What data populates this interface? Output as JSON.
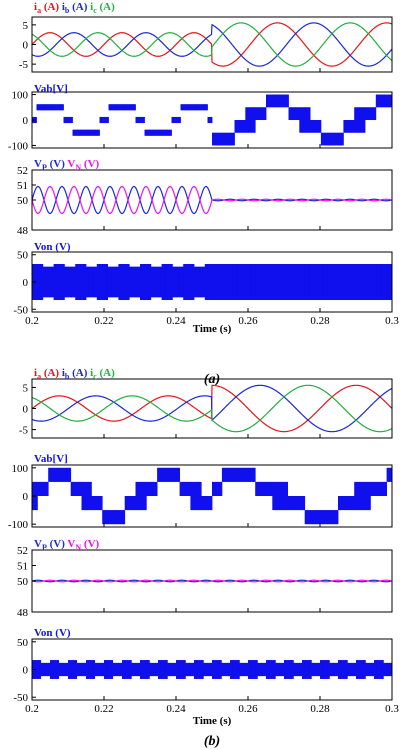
{
  "colors": {
    "ia": "#e8141b",
    "ib": "#1c28d8",
    "ic": "#22b040",
    "vab": "#1010ee",
    "vp": "#1c28d8",
    "vn": "#ee11ee",
    "von": "#1010ee"
  },
  "chart_data": [
    {
      "id": "a",
      "caption": "(a)",
      "xlabel": "Time (s)",
      "xlim": [
        0.2,
        0.3
      ],
      "xticks": [
        0.2,
        0.22,
        0.24,
        0.26,
        0.28,
        0.3
      ],
      "xtick_labels": [
        "0.2",
        "0.22",
        "0.24",
        "0.26",
        "0.28",
        "0.3"
      ],
      "transition_time": 0.25,
      "panels": [
        {
          "type": "line",
          "title_parts": [
            {
              "text": "i",
              "sub": "a",
              "unit": " (A)",
              "color": "ia"
            },
            {
              "text": " i",
              "sub": "b",
              "unit": " (A)",
              "color": "ib"
            },
            {
              "text": " i",
              "sub": "c",
              "unit": " (A)",
              "color": "ic"
            }
          ],
          "ylim": [
            -7,
            7
          ],
          "yticks": [
            -5,
            0,
            5
          ],
          "ytick_labels": [
            "-5",
            "0",
            "5"
          ],
          "frequency_hz": 50,
          "amplitude_before": 3,
          "amplitude_after": 5.5,
          "series": [
            {
              "name": "ia",
              "phase_deg": 0
            },
            {
              "name": "ib",
              "phase_deg": -120
            },
            {
              "name": "ic",
              "phase_deg": 120
            }
          ]
        },
        {
          "type": "area",
          "title_parts": [
            {
              "text": "Vab[V]",
              "color": "vab"
            }
          ],
          "ylim": [
            -110,
            110
          ],
          "yticks": [
            -100,
            0,
            100
          ],
          "ytick_labels": [
            "-100",
            "0",
            "100"
          ],
          "levels_before": [
            50,
            0,
            -50
          ],
          "levels_after": [
            100,
            50,
            0,
            -50,
            -100
          ]
        },
        {
          "type": "line",
          "title_parts": [
            {
              "text": "V",
              "sub": "P",
              "unit": " (V)",
              "color": "vp"
            },
            {
              "text": " V",
              "sub": "N",
              "unit": " (V)",
              "color": "vn"
            }
          ],
          "ylim": [
            48,
            52
          ],
          "yticks": [
            48,
            50,
            51,
            52
          ],
          "ytick_labels": [
            "48",
            "50",
            "51",
            "52"
          ],
          "center": 50,
          "ripple_before": 0.9,
          "ripple_after": 0.05
        },
        {
          "type": "area",
          "title_parts": [
            {
              "text": "Von (V)",
              "color": "von"
            }
          ],
          "ylim": [
            -55,
            55
          ],
          "yticks": [
            -50,
            0,
            50
          ],
          "ytick_labels": [
            "-50",
            "0",
            "50"
          ],
          "amplitude": 33
        }
      ]
    },
    {
      "id": "b",
      "caption": "(b)",
      "xlabel": "Time (s)",
      "xlim": [
        0.2,
        0.3
      ],
      "xticks": [
        0.2,
        0.22,
        0.24,
        0.26,
        0.28,
        0.3
      ],
      "xtick_labels": [
        "0.2",
        "0.22",
        "0.24",
        "0.26",
        "0.28",
        "0.3"
      ],
      "transition_time": 0.25,
      "panels": [
        {
          "type": "line",
          "title_parts": [
            {
              "text": "i",
              "sub": "a",
              "unit": " (A)",
              "color": "ia"
            },
            {
              "text": " i",
              "sub": "b",
              "unit": " (A)",
              "color": "ib"
            },
            {
              "text": " i",
              "sub": "c",
              "unit": " (A)",
              "color": "ic"
            }
          ],
          "ylim": [
            -7,
            7
          ],
          "yticks": [
            -5,
            0,
            5
          ],
          "ytick_labels": [
            "-5",
            "0",
            "5"
          ],
          "frequency_hz": 33,
          "amplitude_before": 3,
          "amplitude_after": 5.5,
          "series": [
            {
              "name": "ia",
              "phase_deg": 0
            },
            {
              "name": "ib",
              "phase_deg": -120
            },
            {
              "name": "ic",
              "phase_deg": 120
            }
          ]
        },
        {
          "type": "area",
          "title_parts": [
            {
              "text": "Vab[V]",
              "color": "vab"
            }
          ],
          "ylim": [
            -110,
            110
          ],
          "yticks": [
            -100,
            0,
            100
          ],
          "ytick_labels": [
            "-100",
            "0",
            "100"
          ],
          "levels": [
            100,
            50,
            0,
            -50,
            -100
          ]
        },
        {
          "type": "line",
          "title_parts": [
            {
              "text": "V",
              "sub": "P",
              "unit": " (V)",
              "color": "vp"
            },
            {
              "text": " V",
              "sub": "N",
              "unit": " (V)",
              "color": "vn"
            }
          ],
          "ylim": [
            48,
            52
          ],
          "yticks": [
            48,
            50,
            51,
            52
          ],
          "ytick_labels": [
            "48",
            "50",
            "51",
            "52"
          ],
          "center": 50,
          "ripple": 0.05
        },
        {
          "type": "area",
          "title_parts": [
            {
              "text": "Von (V)",
              "color": "von"
            }
          ],
          "ylim": [
            -55,
            55
          ],
          "yticks": [
            -50,
            0,
            50
          ],
          "ytick_labels": [
            "-50",
            "0",
            "50"
          ],
          "amplitude": 17
        }
      ]
    }
  ]
}
